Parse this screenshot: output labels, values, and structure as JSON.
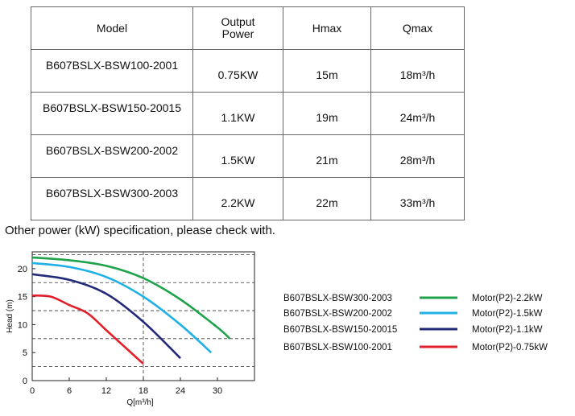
{
  "table": {
    "headers": {
      "model": "Model",
      "power_line1": "Output",
      "power_line2": "Power",
      "hmax": "Hmax",
      "qmax": "Qmax"
    },
    "rows": [
      {
        "model": "B607BSLX-BSW100-2001",
        "power": "0.75KW",
        "hmax": "15m",
        "qmax": "18m³/h"
      },
      {
        "model": "B607BSLX-BSW150-20015",
        "power": "1.1KW",
        "hmax": "19m",
        "qmax": "24m³/h"
      },
      {
        "model": "B607BSLX-BSW200-2002",
        "power": "1.5KW",
        "hmax": "21m",
        "qmax": "28m³/h"
      },
      {
        "model": "B607BSLX-BSW300-2003",
        "power": "2.2KW",
        "hmax": "22m",
        "qmax": "33m³/h"
      }
    ]
  },
  "note": "Other power (kW) specification, please check with.",
  "chart_data": {
    "type": "line",
    "xlabel": "Q[m³/h]",
    "ylabel": "Head (m)",
    "xlim": [
      0,
      36
    ],
    "ylim": [
      0,
      23
    ],
    "xticks": [
      0,
      6,
      12,
      18,
      24,
      30
    ],
    "yticks": [
      0,
      5,
      10,
      15,
      20
    ],
    "dashed_gridlines_y": [
      2.5,
      7.5,
      12.5,
      17.5,
      22.5
    ],
    "dashed_gridlines_x": [
      18
    ],
    "legend_position": "right",
    "series": [
      {
        "name": "B607BSLX-BSW300-2003",
        "motor": "Motor(P2)-2.2kW",
        "color": "#1fa34a",
        "x": [
          0,
          6,
          12,
          18,
          24,
          30,
          32
        ],
        "y": [
          22,
          21.5,
          20.5,
          18.3,
          14.5,
          9.5,
          7.5
        ]
      },
      {
        "name": "B607BSLX-BSW200-2002",
        "motor": "Motor(P2)-1.5kW",
        "color": "#1fb0e6",
        "x": [
          0,
          6,
          12,
          18,
          24,
          29
        ],
        "y": [
          21,
          20.3,
          18.5,
          15,
          10,
          5
        ]
      },
      {
        "name": "B607BSLX-BSW150-20015",
        "motor": "Motor(P2)-1.1kW",
        "color": "#232a7a",
        "x": [
          0,
          6,
          12,
          18,
          24
        ],
        "y": [
          19,
          18,
          15.5,
          10.5,
          4
        ]
      },
      {
        "name": "B607BSLX-BSW100-2001",
        "motor": "Motor(P2)-0.75kW",
        "color": "#e3202a",
        "x": [
          0,
          3,
          6,
          9,
          12,
          15,
          18
        ],
        "y": [
          15.2,
          15,
          13.5,
          12,
          9,
          6,
          3
        ]
      }
    ]
  }
}
